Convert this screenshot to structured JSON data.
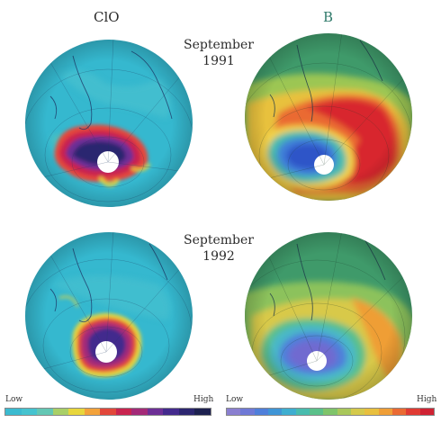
{
  "columns": {
    "left_title": "ClO",
    "right_title": "B"
  },
  "captions": {
    "top": [
      "September",
      "1991"
    ],
    "bottom": [
      "September",
      "1992"
    ]
  },
  "scales": {
    "clo": {
      "low": "Low",
      "high": "High",
      "colors": [
        "#3bbbd0",
        "#45c3cf",
        "#63c7b4",
        "#a9cf67",
        "#e8d63c",
        "#f3a23a",
        "#e2473a",
        "#c9244f",
        "#a42a78",
        "#6d2f96",
        "#432a8d",
        "#2c2670",
        "#1d2150"
      ]
    },
    "b": {
      "low": "Low",
      "high": "High",
      "colors": [
        "#8a7fd0",
        "#6f79d6",
        "#4f7fda",
        "#3f95d6",
        "#3eaed0",
        "#48bcae",
        "#5ac08a",
        "#7fc46a",
        "#a9c75a",
        "#d4c94b",
        "#e8bf3e",
        "#ef9e36",
        "#ea6a33",
        "#e03a33",
        "#cf2233"
      ]
    }
  }
}
